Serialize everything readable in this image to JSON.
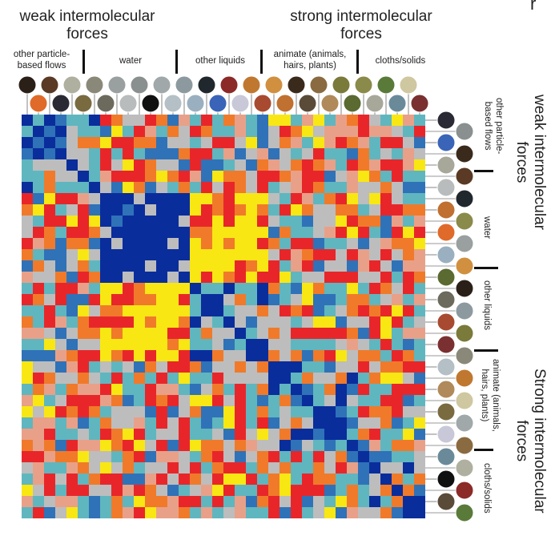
{
  "top_axis": {
    "left_title_line1": "weak intermolecular",
    "left_title_line2": "forces",
    "right_title_line1": "strong intermolecular",
    "right_title_line2": "forces",
    "group_other_particle_line1": "other particle-",
    "group_other_particle_line2": "based flows",
    "group_water": "water",
    "group_other_liquids": "other liquids",
    "group_animate_line1": "animate (animals,",
    "group_animate_line2": "hairs, plants)",
    "group_cloths": "cloths/solids"
  },
  "right_axis": {
    "weak_title_line1": "weak intermolecular",
    "weak_title_line2": "forces",
    "strong_title_line1": "Strong intermolecular",
    "strong_title_line2": "forces",
    "group_other_particle_line1": "other particle-",
    "group_other_particle_line2": "based flows",
    "group_water": "water",
    "group_other_liquids": "other liquids",
    "group_animate_line1": "animate (animals,",
    "group_animate_line2": "hairs, plants)",
    "group_cloths": "cloths/solids",
    "corner_text": "r"
  },
  "chart_data": {
    "type": "heatmap",
    "rows": 36,
    "cols": 36,
    "palette": [
      "#0a2d9c",
      "#2f72b8",
      "#5fb6bf",
      "#bdbdbd",
      "#e9a088",
      "#f07a2a",
      "#e8262a",
      "#f8e713"
    ],
    "groups": [
      {
        "name": "other particle-based flows",
        "size": 7
      },
      {
        "name": "water",
        "size": 8
      },
      {
        "name": "other liquids",
        "size": 7
      },
      {
        "name": "animate (animals, hairs, plants)",
        "size": 8
      },
      {
        "name": "cloths/solids",
        "size": 6
      }
    ],
    "thumbnail_colors": [
      "#2b2018",
      "#e06a2a",
      "#5a3a24",
      "#2a2a34",
      "#b0b0a0",
      "#7a6a40",
      "#8a8878",
      "#6c6a5c",
      "#9aa0a0",
      "#b8bcbc",
      "#8a9090",
      "#101010",
      "#a0a8aa",
      "#b4c0c6",
      "#8c9aa0",
      "#9ab0c0",
      "#20282e",
      "#3a64b8",
      "#8c2a28",
      "#c8c8d8",
      "#c07830",
      "#a84a30",
      "#d09040",
      "#c07030",
      "#3a2a1c",
      "#5a4a38",
      "#8a6a40",
      "#b08a5a",
      "#7a7a3a",
      "#5a6a30",
      "#8a8a4a",
      "#a8a89a",
      "#5a7a3a",
      "#6a8a9a",
      "#cfc7a0",
      "#7a3030"
    ]
  }
}
